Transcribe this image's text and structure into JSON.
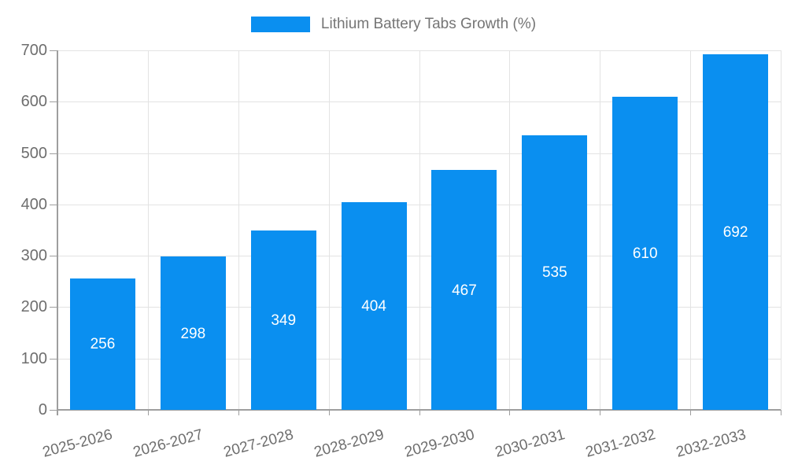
{
  "chart_data": {
    "type": "bar",
    "title": "Lithium Battery Tabs Growth (%)",
    "categories": [
      "2025-2026",
      "2026-2027",
      "2027-2028",
      "2028-2029",
      "2029-2030",
      "2030-2031",
      "2031-2032",
      "2032-2033"
    ],
    "values": [
      256,
      298,
      349,
      404,
      467,
      535,
      610,
      692
    ],
    "xlabel": "",
    "ylabel": "",
    "ylim": [
      0,
      700
    ],
    "ytick_step": 100,
    "ytick_labels": [
      "0",
      "100",
      "200",
      "300",
      "400",
      "500",
      "600",
      "700"
    ],
    "grid": true,
    "legend_position": "top-center",
    "x_label_rotation_deg": -15,
    "colors": {
      "bar": "#0a8ff0",
      "value_label": "#ffffff",
      "axis_text": "#6e6e6e",
      "legend_text": "#757575",
      "gridline": "#e3e3e3",
      "axis_line": "#9e9e9e"
    }
  }
}
